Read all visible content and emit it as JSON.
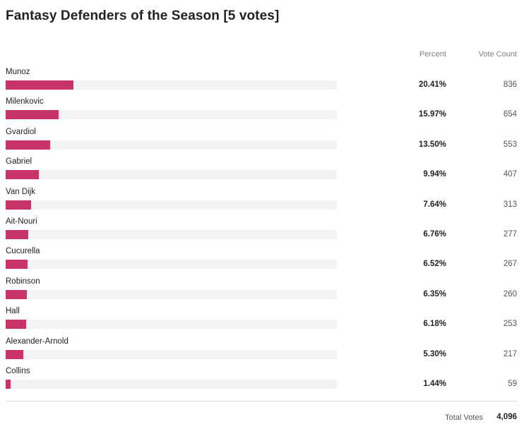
{
  "title": "Fantasy Defenders of the Season [5 votes]",
  "colors": {
    "bar": "#c8336a",
    "track": "#f3f3f3"
  },
  "chart_data": {
    "type": "bar",
    "title": "Fantasy Defenders of the Season [5 votes]",
    "headers": {
      "percent": "Percent",
      "count": "Vote Count"
    },
    "xlim": [
      0,
      100
    ],
    "rows": [
      {
        "name": "Munoz",
        "percent": 20.41,
        "percent_label": "20.41%",
        "count": 836
      },
      {
        "name": "Milenkovic",
        "percent": 15.97,
        "percent_label": "15.97%",
        "count": 654
      },
      {
        "name": "Gvardiol",
        "percent": 13.5,
        "percent_label": "13.50%",
        "count": 553
      },
      {
        "name": "Gabriel",
        "percent": 9.94,
        "percent_label": "9.94%",
        "count": 407
      },
      {
        "name": "Van Dijk",
        "percent": 7.64,
        "percent_label": "7.64%",
        "count": 313
      },
      {
        "name": "Ait-Nouri",
        "percent": 6.76,
        "percent_label": "6.76%",
        "count": 277
      },
      {
        "name": "Cucurella",
        "percent": 6.52,
        "percent_label": "6.52%",
        "count": 267
      },
      {
        "name": "Robinson",
        "percent": 6.35,
        "percent_label": "6.35%",
        "count": 260
      },
      {
        "name": "Hall",
        "percent": 6.18,
        "percent_label": "6.18%",
        "count": 253
      },
      {
        "name": "Alexander-Arnold",
        "percent": 5.3,
        "percent_label": "5.30%",
        "count": 217
      },
      {
        "name": "Collins",
        "percent": 1.44,
        "percent_label": "1.44%",
        "count": 59
      }
    ],
    "total": {
      "label": "Total Votes",
      "value": "4,096"
    }
  }
}
